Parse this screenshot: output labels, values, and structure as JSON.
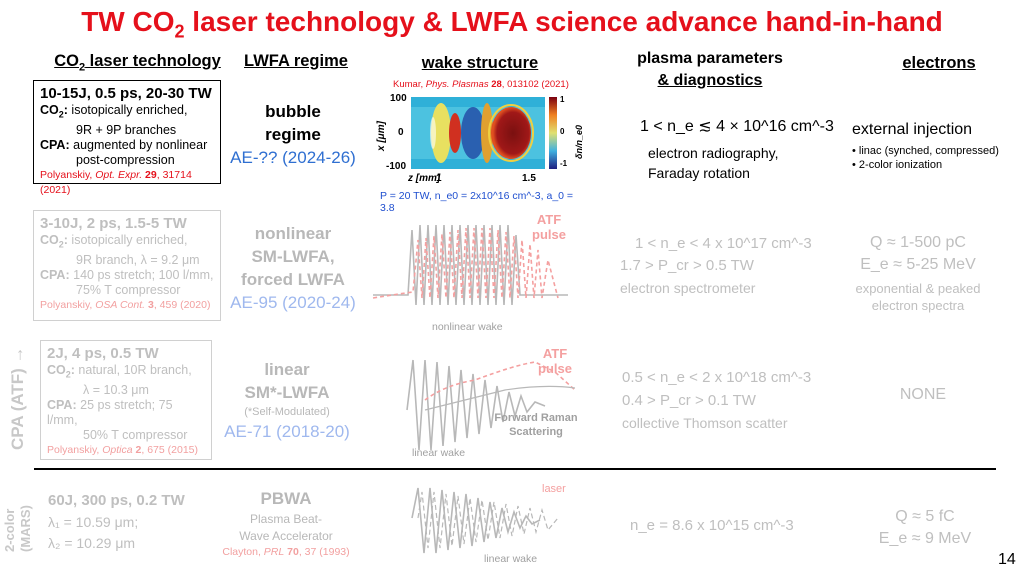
{
  "title": {
    "pre": "TW CO",
    "sub": "2",
    "post": " laser technology & LWFA science advance hand-in-hand"
  },
  "headers": {
    "co2_pre": "CO",
    "co2_sub": "2",
    "co2_post": " laser technology",
    "lwfa": "LWFA regime",
    "wake": "wake structure",
    "plasma_line1": "plasma parameters",
    "plasma_line2": "& diagnostics",
    "electrons": "electrons"
  },
  "side_labels": {
    "cpa": "CPA (ATF) →",
    "two_color": "2-color",
    "mars": "(MARS)"
  },
  "page_number": "14",
  "rows": {
    "r1": {
      "laser": {
        "head": "10-15J, 0.5 ps, 20-30 TW",
        "co2_label": "CO",
        "co2_sub": "2",
        "co2_colon": ":",
        "co2_text": " isotopically enriched,",
        "co2_text2": "9R + 9P branches",
        "cpa_label": "CPA:",
        "cpa_text": " augmented by nonlinear",
        "cpa_text2": "post-compression",
        "ref_author": "Polyanskiy, ",
        "ref_journal": "Opt. Expr.",
        "ref_vol": " 29",
        "ref_rest": ", 31714 (2021)"
      },
      "regime": {
        "line1": "bubble",
        "line2": "regime",
        "ae": "AE-?? (2024-26)"
      },
      "wake": {
        "ref_author": "Kumar, ",
        "ref_journal": "Phys. Plasmas",
        "ref_vol": " 28",
        "ref_rest": ", 013102 (2021)",
        "yaxis": "x [μm]",
        "ymax": "100",
        "ymid": "0",
        "ymin": "-100",
        "xaxis": "z [mm]",
        "x1": "1",
        "x2": "1.5",
        "cbar_label": "δn/n_e0",
        "cbar_top": "1",
        "cbar_mid": "0",
        "cbar_bot": "-1",
        "params": "P = 20 TW, n_e0 = 2x10^16 cm^-3, a_0 = 3.8"
      },
      "plasma": {
        "density": "1 < n_e ≲ 4 × 10^16 cm^-3",
        "diag1": "electron radiography,",
        "diag2": "Faraday rotation"
      },
      "electrons": {
        "line1": "external injection",
        "b1": "• linac (synched, compressed)",
        "b2": "• 2-color ionization"
      }
    },
    "r2": {
      "laser": {
        "head": "3-10J, 2 ps, 1.5-5 TW",
        "co2_label": "CO",
        "co2_sub": "2",
        "co2_colon": ":",
        "co2_text": " isotopically enriched,",
        "co2_text2": "9R branch, λ = 9.2 μm",
        "cpa_label": "CPA:",
        "cpa_text": " 140 ps stretch; 100 l/mm,",
        "cpa_text2": "75% T compressor",
        "ref_author": "Polyanskiy, ",
        "ref_journal": "OSA Cont.",
        "ref_vol": " 3",
        "ref_rest": ", 459 (2020)"
      },
      "regime": {
        "line1": "nonlinear",
        "line2": "SM-LWFA,",
        "line3": "forced LWFA",
        "ae": "AE-95 (2020-24)"
      },
      "wake": {
        "pulse1": "ATF",
        "pulse2": "pulse",
        "label": "nonlinear wake"
      },
      "plasma": {
        "l1": "1 < n_e < 4 x 10^17 cm^-3",
        "l2": "1.7 > P_cr > 0.5 TW",
        "l3": "electron spectrometer"
      },
      "electrons": {
        "l1": "Q ≈ 1-500 pC",
        "l2": "E_e ≈ 5-25 MeV",
        "l3": "exponential & peaked",
        "l4": "electron spectra"
      }
    },
    "r3": {
      "laser": {
        "head": "2J, 4 ps, 0.5 TW",
        "co2_label": "CO",
        "co2_sub": "2",
        "co2_colon": ":",
        "co2_text": " natural, 10R branch,",
        "co2_text2": "λ = 10.3 μm",
        "cpa_label": "CPA:",
        "cpa_text": " 25 ps stretch; 75 l/mm,",
        "cpa_text2": "50% T compressor",
        "ref_author": "Polyanskiy, ",
        "ref_journal": "Optica",
        "ref_vol": " 2",
        "ref_rest": ", 675 (2015)"
      },
      "regime": {
        "line1": "linear",
        "line2": "SM*-LWFA",
        "note": "(*Self-Modulated)",
        "ae": "AE-71 (2018-20)"
      },
      "wake": {
        "pulse1": "ATF",
        "pulse2": "pulse",
        "frs1": "Forward Raman",
        "frs2": "Scattering",
        "label": "linear wake"
      },
      "plasma": {
        "l1": "0.5 < n_e < 2 x 10^18 cm^-3",
        "l2": "0.4 > P_cr > 0.1 TW",
        "l3": "collective Thomson scatter"
      },
      "electrons": {
        "l1": "NONE"
      }
    },
    "r4": {
      "laser": {
        "head": "60J, 300 ps, 0.2 TW",
        "l1": "λ₁ = 10.59 μm;",
        "l2": "λ₂ = 10.29 μm"
      },
      "regime": {
        "line1": "PBWA",
        "line2": "Plasma Beat-",
        "line3": "Wave Accelerator",
        "ref_author": "Clayton, ",
        "ref_journal": "PRL",
        "ref_vol": " 70",
        "ref_rest": ", 37 (1993)"
      },
      "wake": {
        "laser": "laser",
        "label": "linear wake"
      },
      "plasma": {
        "l1": "n_e = 8.6 x 10^15 cm^-3"
      },
      "electrons": {
        "l1": "Q ≈ 5 fC",
        "l2": "E_e ≈ 9 MeV"
      }
    }
  },
  "colors": {
    "title_red": "#e5101b",
    "ae_blue": "#2f6fd1",
    "faded_gray": "#bfbfbf",
    "pulse_pink": "#f4a0a0"
  }
}
